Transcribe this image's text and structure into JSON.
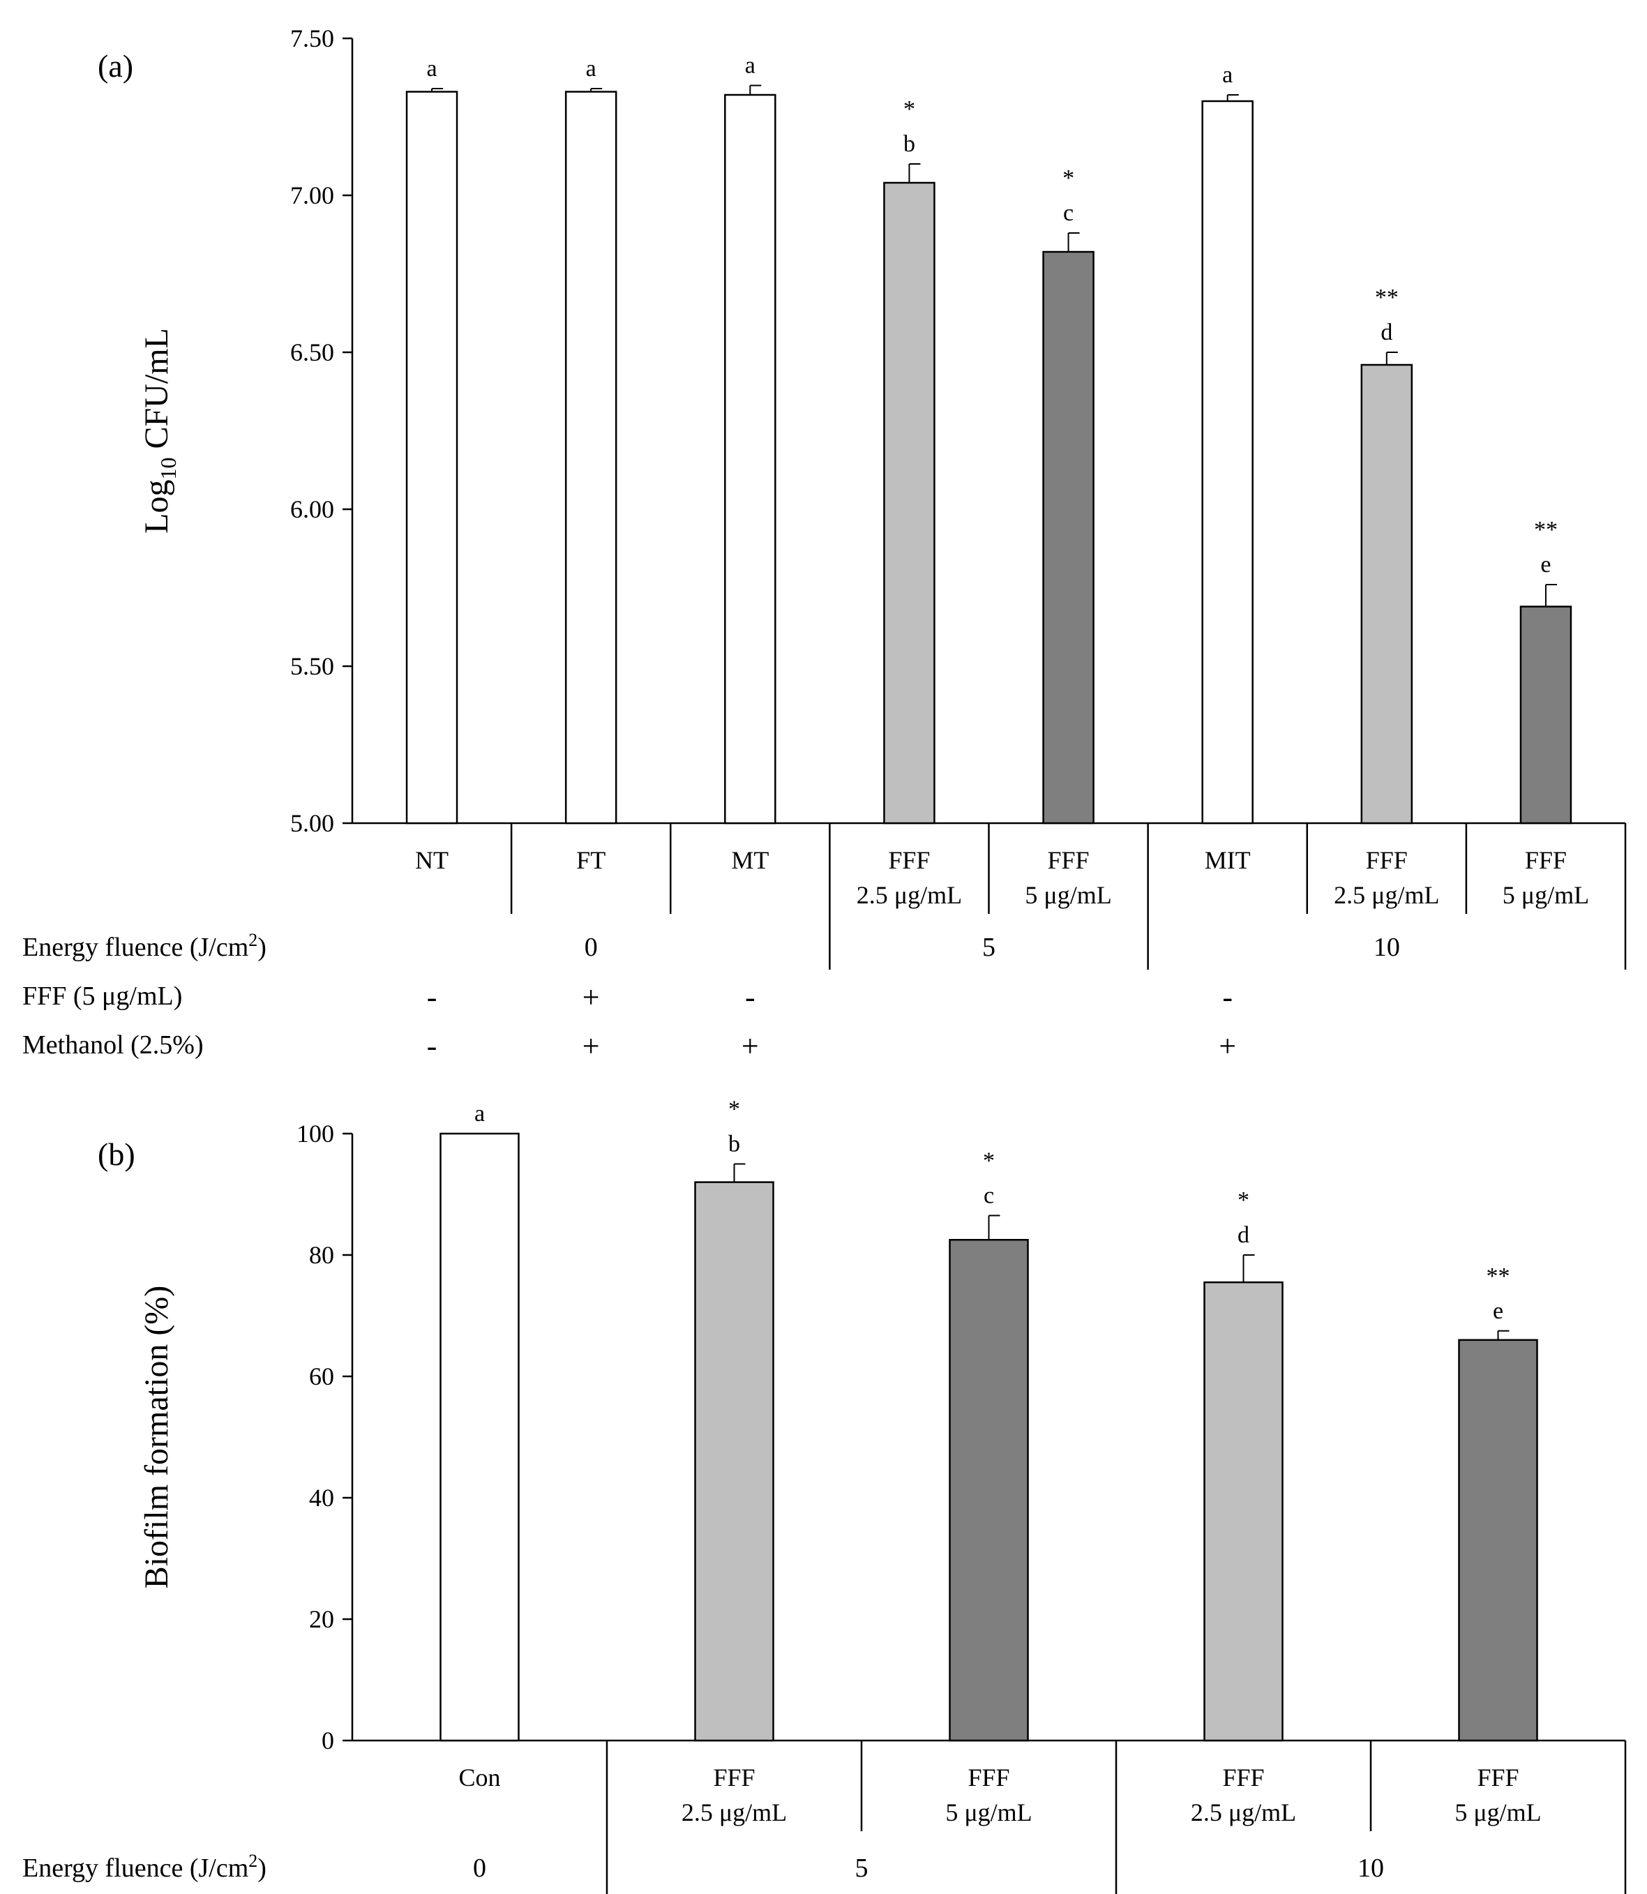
{
  "chart_data": [
    {
      "type": "bar",
      "panel_label": "(a)",
      "ylabel_main": "Log",
      "ylabel_sub": "10",
      "ylabel_rest": " CFU/mL",
      "ylim": [
        5.0,
        7.5
      ],
      "yticks": [
        "5.00",
        "5.50",
        "6.00",
        "6.50",
        "7.00",
        "7.50"
      ],
      "ytick_values": [
        5.0,
        5.5,
        6.0,
        6.5,
        7.0,
        7.5
      ],
      "categories": [
        [
          "NT"
        ],
        [
          "FT"
        ],
        [
          "MT"
        ],
        [
          "FFF",
          "2.5 μg/mL"
        ],
        [
          "FFF",
          "5 μg/mL"
        ],
        [
          "MIT"
        ],
        [
          "FFF",
          "2.5 μg/mL"
        ],
        [
          "FFF",
          "5 μg/mL"
        ]
      ],
      "values": [
        7.33,
        7.33,
        7.32,
        7.04,
        6.82,
        7.3,
        6.46,
        5.69
      ],
      "errors": [
        0.01,
        0.01,
        0.03,
        0.06,
        0.06,
        0.02,
        0.04,
        0.07
      ],
      "fills": [
        "#ffffff",
        "#ffffff",
        "#ffffff",
        "#bfbfbf",
        "#7f7f7f",
        "#ffffff",
        "#bfbfbf",
        "#7f7f7f"
      ],
      "letters": [
        "a",
        "a",
        "a",
        "b",
        "c",
        "a",
        "d",
        "e"
      ],
      "stars": [
        "",
        "",
        "",
        "*",
        "*",
        "",
        "**",
        "**"
      ],
      "energy_label_main": "Energy fluence (J/cm",
      "energy_label_sup": "2",
      "energy_label_end": ")",
      "energy_groups": [
        {
          "label": "0",
          "start": 0,
          "end": 2
        },
        {
          "label": "5",
          "start": 3,
          "end": 4
        },
        {
          "label": "10",
          "start": 5,
          "end": 7
        }
      ],
      "extra_rows": [
        {
          "label": "FFF (5 μg/mL)",
          "symbols": [
            "-",
            "+",
            "-",
            "",
            "",
            "-",
            "",
            ""
          ]
        },
        {
          "label": "Methanol (2.5%)",
          "symbols": [
            "-",
            "+",
            "+",
            "",
            "",
            "+",
            "",
            ""
          ]
        }
      ]
    },
    {
      "type": "bar",
      "panel_label": "(b)",
      "ylabel": "Biofilm formation (%)",
      "ylim": [
        0,
        100
      ],
      "yticks": [
        "0",
        "20",
        "40",
        "60",
        "80",
        "100"
      ],
      "ytick_values": [
        0,
        20,
        40,
        60,
        80,
        100
      ],
      "categories": [
        [
          "Con"
        ],
        [
          "FFF",
          "2.5 μg/mL"
        ],
        [
          "FFF",
          "5 μg/mL"
        ],
        [
          "FFF",
          "2.5 μg/mL"
        ],
        [
          "FFF",
          "5 μg/mL"
        ]
      ],
      "values": [
        100,
        92,
        82.5,
        75.5,
        66
      ],
      "errors": [
        0,
        3,
        4,
        4.5,
        1.5
      ],
      "fills": [
        "#ffffff",
        "#bfbfbf",
        "#7f7f7f",
        "#bfbfbf",
        "#7f7f7f"
      ],
      "letters": [
        "a",
        "b",
        "c",
        "d",
        "e"
      ],
      "stars": [
        "",
        "*",
        "*",
        "*",
        "**"
      ],
      "energy_label_main": "Energy fluence (J/cm",
      "energy_label_sup": "2",
      "energy_label_end": ")",
      "energy_groups": [
        {
          "label": "0",
          "start": 0,
          "end": 0
        },
        {
          "label": "5",
          "start": 1,
          "end": 2
        },
        {
          "label": "10",
          "start": 3,
          "end": 4
        }
      ]
    }
  ]
}
